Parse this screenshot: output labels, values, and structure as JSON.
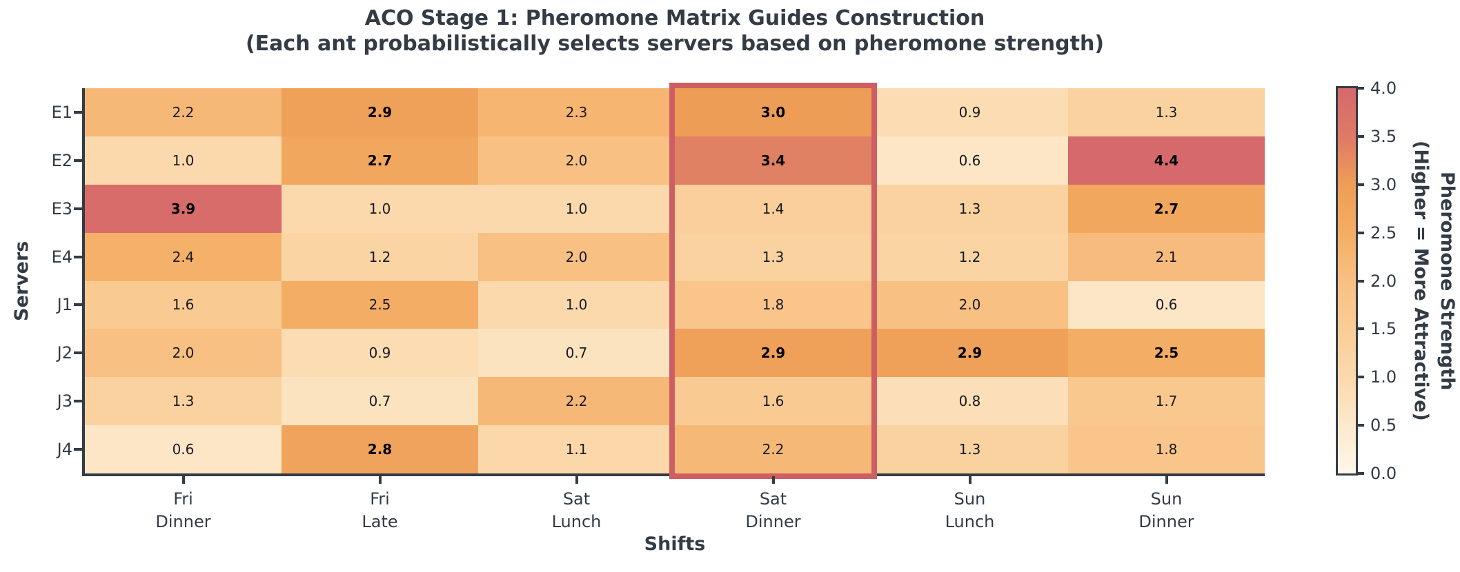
{
  "page": {
    "background": "#ffffff"
  },
  "colors": {
    "text": "#333b45",
    "cell_text": "#17191d",
    "cell_text_bold": "#000000",
    "spine": "#333b45",
    "highlight": "#cd5f64"
  },
  "chart_data": {
    "type": "heatmap",
    "title": "ACO Stage 1: Pheromone Matrix Guides Construction",
    "subtitle": "(Each ant probabilistically selects servers based on pheromone strength)",
    "xlabel": "Shifts",
    "ylabel": "Servers",
    "row_labels": [
      "E1",
      "E2",
      "E3",
      "E4",
      "J1",
      "J2",
      "J3",
      "J4"
    ],
    "col_labels": [
      {
        "line1": "Fri",
        "line2": "Dinner"
      },
      {
        "line1": "Fri",
        "line2": "Late"
      },
      {
        "line1": "Sat",
        "line2": "Lunch"
      },
      {
        "line1": "Sat",
        "line2": "Dinner"
      },
      {
        "line1": "Sun",
        "line2": "Lunch"
      },
      {
        "line1": "Sun",
        "line2": "Dinner"
      }
    ],
    "values": [
      [
        2.2,
        2.9,
        2.3,
        3.0,
        0.9,
        1.3
      ],
      [
        1.0,
        2.7,
        2.0,
        3.4,
        0.6,
        4.4
      ],
      [
        3.9,
        1.0,
        1.0,
        1.4,
        1.3,
        2.7
      ],
      [
        2.4,
        1.2,
        2.0,
        1.3,
        1.2,
        2.1
      ],
      [
        1.6,
        2.5,
        1.0,
        1.8,
        2.0,
        0.6
      ],
      [
        2.0,
        0.9,
        0.7,
        2.9,
        2.9,
        2.5
      ],
      [
        1.3,
        0.7,
        2.2,
        1.6,
        0.8,
        1.7
      ],
      [
        0.6,
        2.8,
        1.1,
        2.2,
        1.3,
        1.8
      ]
    ],
    "bold_mask": [
      [
        0,
        1,
        0,
        1,
        0,
        0
      ],
      [
        0,
        1,
        0,
        1,
        0,
        1
      ],
      [
        1,
        0,
        0,
        0,
        0,
        1
      ],
      [
        0,
        0,
        0,
        0,
        0,
        0
      ],
      [
        0,
        0,
        0,
        0,
        0,
        0
      ],
      [
        0,
        0,
        0,
        1,
        1,
        1
      ],
      [
        0,
        0,
        0,
        0,
        0,
        0
      ],
      [
        0,
        1,
        0,
        0,
        0,
        0
      ]
    ],
    "value_decimals": 1,
    "highlight": {
      "column_index": 3,
      "column_name": "Sat Dinner",
      "color": "#cd5f64"
    },
    "colorbar": {
      "label_line1": "Pheromone Strength",
      "label_line2": "(Higher = More Attractive)",
      "tick_labels_top_to_bottom": [
        "4.0",
        "3.5",
        "3.0",
        "2.5",
        "2.0",
        "1.5",
        "1.0",
        "0.5",
        "0.0"
      ],
      "vmin": 0.0,
      "vmax": 4.0
    },
    "colormap_anchors": [
      [
        0.0,
        "#fef7eb"
      ],
      [
        0.5,
        "#fde9cc"
      ],
      [
        1.0,
        "#fbd9ad"
      ],
      [
        1.5,
        "#facd97"
      ],
      [
        2.0,
        "#f8c083"
      ],
      [
        2.5,
        "#f4ad64"
      ],
      [
        3.0,
        "#ee9d56"
      ],
      [
        3.5,
        "#de7a66"
      ],
      [
        4.0,
        "#d5696b"
      ]
    ],
    "layout": {
      "grid": false,
      "colorbar_position": "right"
    }
  }
}
